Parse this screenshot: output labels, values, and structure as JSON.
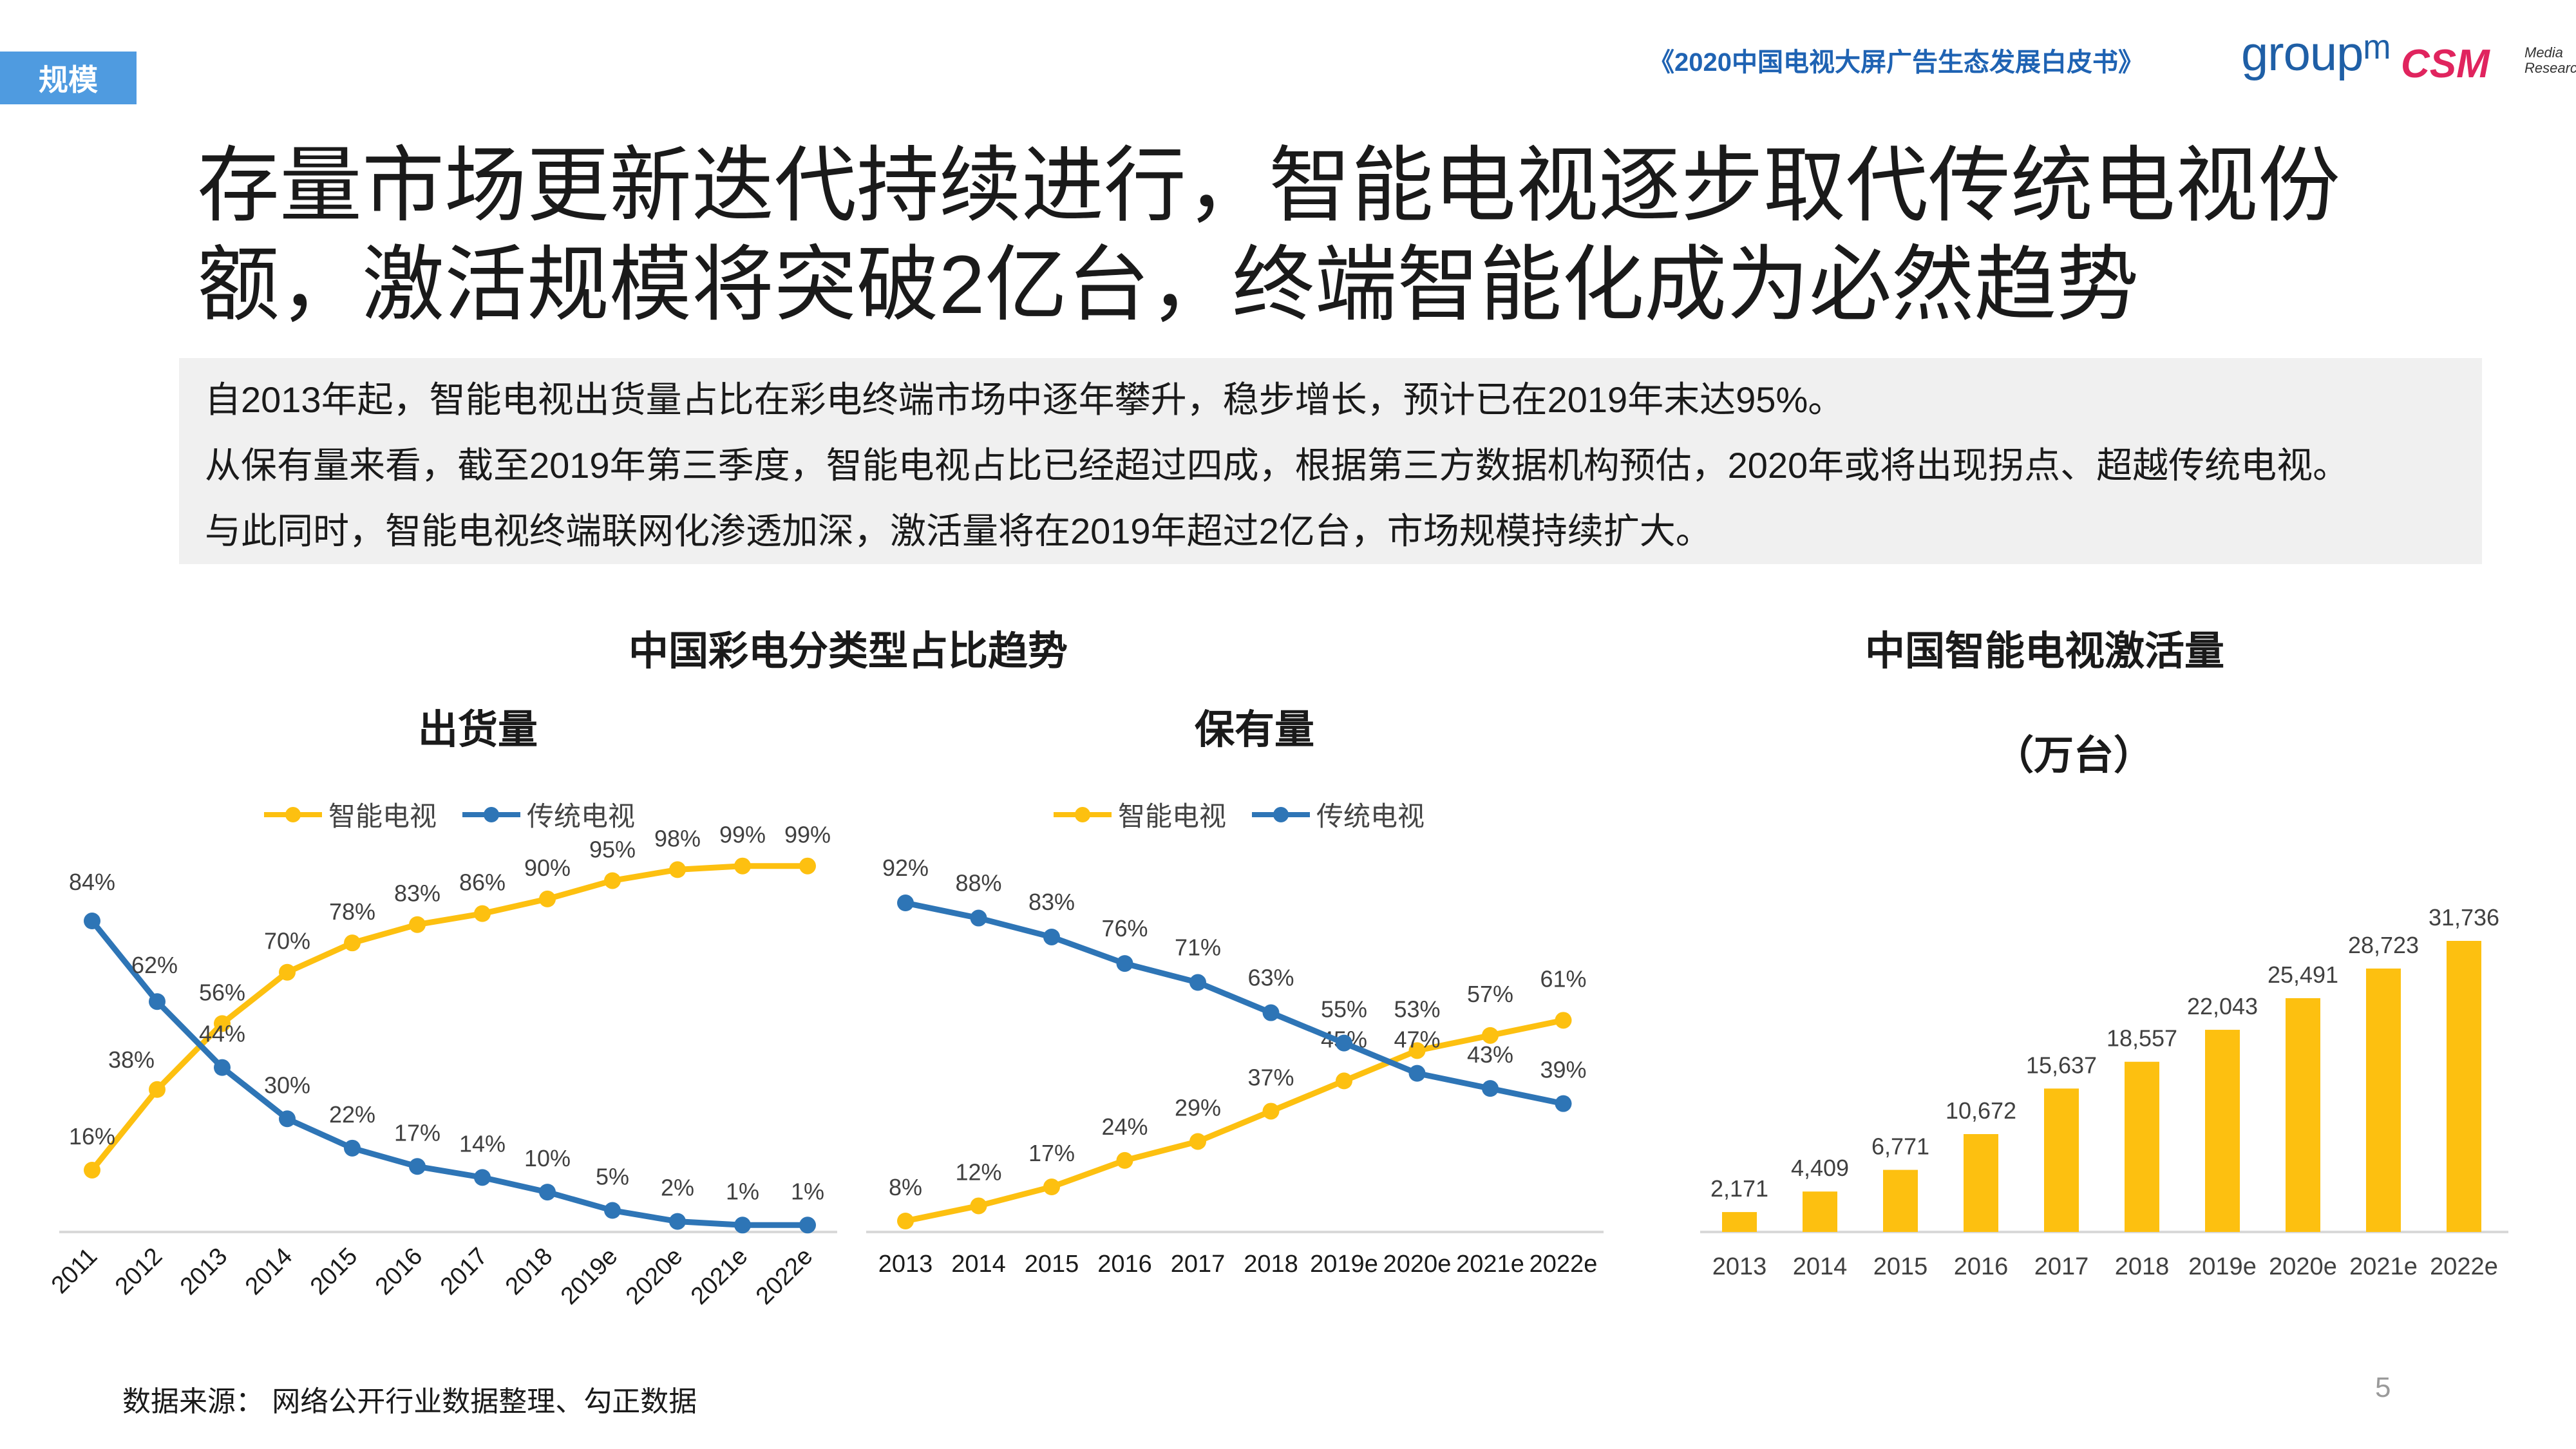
{
  "header": {
    "tag": "规模",
    "report_title": "《2020中国电视大屏广告生态发展白皮书》",
    "brand_groupm": "groupᵐ",
    "brand_csm": "CSM",
    "brand_csm_sub": "Media Research"
  },
  "headline": "存量市场更新迭代持续进行，智能电视逐步取代传统电视份额，激活规模将突破2亿台，终端智能化成为必然趋势",
  "summary": [
    "自2013年起，智能电视出货量占比在彩电终端市场中逐年攀升，稳步增长，预计已在2019年末达95%。",
    "从保有量来看，截至2019年第三季度，智能电视占比已经超过四成，根据第三方数据机构预估，2020年或将出现拐点、超越传统电视。",
    "与此同时，智能电视终端联网化渗透加深，激活量将在2019年超过2亿台，市场规模持续扩大。"
  ],
  "section": {
    "left_title": "中国彩电分类型占比趋势",
    "right_title": "中国智能电视激活量",
    "right_unit": "（万台）"
  },
  "colors": {
    "smart": "#FDC010",
    "traditional": "#2E75B6",
    "bar": "#FDC010",
    "axis": "#D9D9D9",
    "label": "#404040"
  },
  "chart_data": [
    {
      "type": "line",
      "title": "出货量",
      "x": [
        "2011",
        "2012",
        "2013",
        "2014",
        "2015",
        "2016",
        "2017",
        "2018",
        "2019e",
        "2020e",
        "2021e",
        "2022e"
      ],
      "series": [
        {
          "name": "智能电视",
          "values": [
            16,
            38,
            56,
            70,
            78,
            83,
            86,
            90,
            95,
            98,
            99,
            99
          ],
          "labels": [
            "16%",
            "38%",
            "56%",
            "70%",
            "78%",
            "83%",
            "86%",
            "90%",
            "95%",
            "98%",
            "99%",
            "99%"
          ]
        },
        {
          "name": "传统电视",
          "values": [
            84,
            62,
            44,
            30,
            22,
            17,
            14,
            10,
            5,
            2,
            1,
            1
          ],
          "labels": [
            "84%",
            "62%",
            "44%",
            "30%",
            "22%",
            "17%",
            "14%",
            "10%",
            "5%",
            "2%",
            "1%",
            "1%"
          ]
        }
      ],
      "ylim": [
        0,
        100
      ],
      "legend": "top",
      "grid": false
    },
    {
      "type": "line",
      "title": "保有量",
      "x": [
        "2013",
        "2014",
        "2015",
        "2016",
        "2017",
        "2018",
        "2019e",
        "2020e",
        "2021e",
        "2022e"
      ],
      "series": [
        {
          "name": "智能电视",
          "values": [
            8,
            12,
            17,
            24,
            29,
            37,
            45,
            53,
            57,
            61
          ],
          "labels": [
            "8%",
            "12%",
            "17%",
            "24%",
            "29%",
            "37%",
            "45%",
            "53%",
            "57%",
            "61%"
          ]
        },
        {
          "name": "传统电视",
          "values": [
            92,
            88,
            83,
            76,
            71,
            63,
            55,
            47,
            43,
            39
          ],
          "labels": [
            "92%",
            "88%",
            "83%",
            "76%",
            "71%",
            "63%",
            "55%",
            "47%",
            "43%",
            "39%"
          ]
        }
      ],
      "ylim": [
        0,
        100
      ],
      "legend": "top",
      "grid": false
    },
    {
      "type": "bar",
      "title": "中国智能电视激活量",
      "ylabel": "（万台）",
      "categories": [
        "2013",
        "2014",
        "2015",
        "2016",
        "2017",
        "2018",
        "2019e",
        "2020e",
        "2021e",
        "2022e"
      ],
      "values": [
        2171,
        4409,
        6771,
        10672,
        15637,
        18557,
        22043,
        25491,
        28723,
        31736
      ],
      "labels": [
        "2,171",
        "4,409",
        "6,771",
        "10,672",
        "15,637",
        "18,557",
        "22,043",
        "25,491",
        "28,723",
        "31,736"
      ],
      "ylim": [
        0,
        33000
      ],
      "grid": false
    }
  ],
  "footer": {
    "source": "数据来源：  网络公开行业数据整理、勾正数据",
    "page": "5"
  }
}
